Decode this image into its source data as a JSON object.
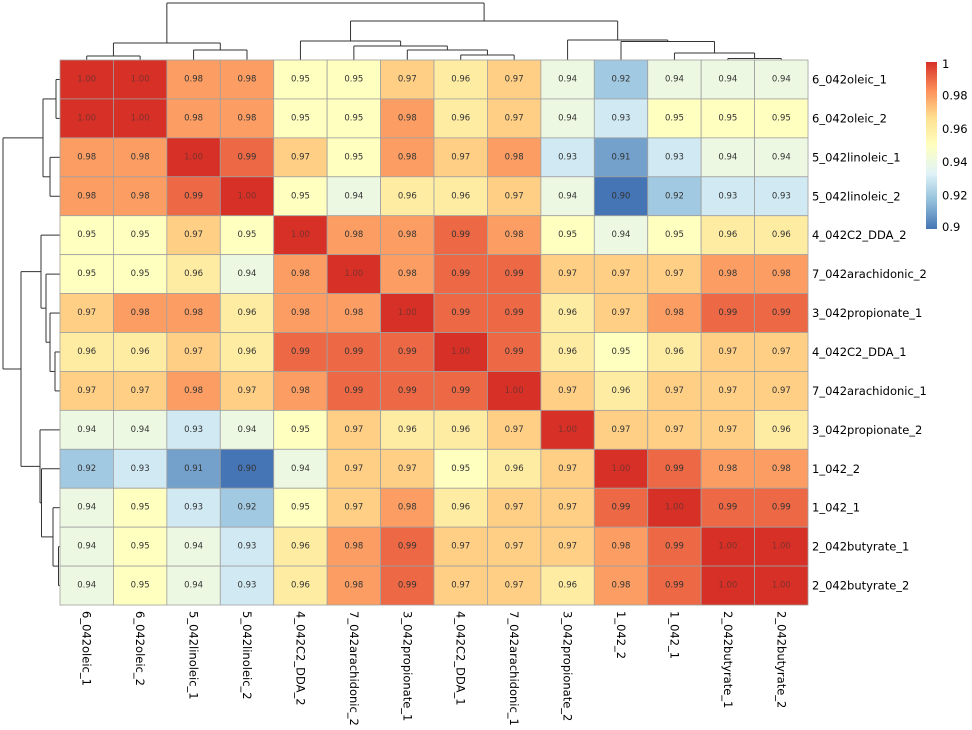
{
  "chart_data": {
    "type": "heatmap",
    "title": "",
    "row_labels": [
      "6_042oleic_1",
      "6_042oleic_2",
      "5_042linoleic_1",
      "5_042linoleic_2",
      "4_042C2_DDA_2",
      "7_042arachidonic_2",
      "3_042propionate_1",
      "4_042C2_DDA_1",
      "7_042arachidonic_1",
      "3_042propionate_2",
      "1_042_2",
      "1_042_1",
      "2_042butyrate_1",
      "2_042butyrate_2"
    ],
    "col_labels": [
      "6_042oleic_1",
      "6_042oleic_2",
      "5_042linoleic_1",
      "5_042linoleic_2",
      "4_042C2_DDA_2",
      "7_042arachidonic_2",
      "3_042propionate_1",
      "4_042C2_DDA_1",
      "7_042arachidonic_1",
      "3_042propionate_2",
      "1_042_2",
      "1_042_1",
      "2_042butyrate_1",
      "2_042butyrate_2"
    ],
    "values": [
      [
        1.0,
        1.0,
        0.98,
        0.98,
        0.95,
        0.95,
        0.97,
        0.96,
        0.97,
        0.94,
        0.92,
        0.94,
        0.94,
        0.94
      ],
      [
        1.0,
        1.0,
        0.98,
        0.98,
        0.95,
        0.95,
        0.98,
        0.96,
        0.97,
        0.94,
        0.93,
        0.95,
        0.95,
        0.95
      ],
      [
        0.98,
        0.98,
        1.0,
        0.99,
        0.97,
        0.95,
        0.98,
        0.97,
        0.98,
        0.93,
        0.91,
        0.93,
        0.94,
        0.94
      ],
      [
        0.98,
        0.98,
        0.99,
        1.0,
        0.95,
        0.94,
        0.96,
        0.96,
        0.97,
        0.94,
        0.9,
        0.92,
        0.93,
        0.93
      ],
      [
        0.95,
        0.95,
        0.97,
        0.95,
        1.0,
        0.98,
        0.98,
        0.99,
        0.98,
        0.95,
        0.94,
        0.95,
        0.96,
        0.96
      ],
      [
        0.95,
        0.95,
        0.96,
        0.94,
        0.98,
        1.0,
        0.98,
        0.99,
        0.99,
        0.97,
        0.97,
        0.97,
        0.98,
        0.98
      ],
      [
        0.97,
        0.98,
        0.98,
        0.96,
        0.98,
        0.98,
        1.0,
        0.99,
        0.99,
        0.96,
        0.97,
        0.98,
        0.99,
        0.99
      ],
      [
        0.96,
        0.96,
        0.97,
        0.96,
        0.99,
        0.99,
        0.99,
        1.0,
        0.99,
        0.96,
        0.95,
        0.96,
        0.97,
        0.97
      ],
      [
        0.97,
        0.97,
        0.98,
        0.97,
        0.98,
        0.99,
        0.99,
        0.99,
        1.0,
        0.97,
        0.96,
        0.97,
        0.97,
        0.97
      ],
      [
        0.94,
        0.94,
        0.93,
        0.94,
        0.95,
        0.97,
        0.96,
        0.96,
        0.97,
        1.0,
        0.97,
        0.97,
        0.97,
        0.96
      ],
      [
        0.92,
        0.93,
        0.91,
        0.9,
        0.94,
        0.97,
        0.97,
        0.95,
        0.96,
        0.97,
        1.0,
        0.99,
        0.98,
        0.98
      ],
      [
        0.94,
        0.95,
        0.93,
        0.92,
        0.95,
        0.97,
        0.98,
        0.96,
        0.97,
        0.97,
        0.99,
        1.0,
        0.99,
        0.99
      ],
      [
        0.94,
        0.95,
        0.94,
        0.93,
        0.96,
        0.98,
        0.99,
        0.97,
        0.97,
        0.97,
        0.98,
        0.99,
        1.0,
        1.0
      ],
      [
        0.94,
        0.95,
        0.94,
        0.93,
        0.96,
        0.98,
        0.99,
        0.97,
        0.97,
        0.96,
        0.98,
        0.99,
        1.0,
        1.0
      ]
    ],
    "color_range": [
      0.9,
      1.0
    ],
    "colorscale": [
      "#4575b4",
      "#91bfdb",
      "#e0f3f8",
      "#ffffbf",
      "#fee090",
      "#fc8d59",
      "#d73027"
    ],
    "legend": {
      "position": "right",
      "ticks": [
        "1",
        "0.98",
        "0.96",
        "0.94",
        "0.92",
        "0.9"
      ]
    },
    "dendrogram": {
      "rows": true,
      "columns": true
    },
    "grid_line_color": "#a0a0a0"
  }
}
